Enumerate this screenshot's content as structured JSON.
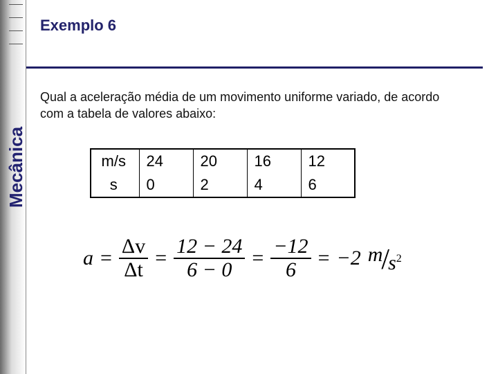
{
  "slide": {
    "title": "Exemplo 6",
    "sidebar_label": "Mecânica",
    "question": "Qual a aceleração média de um movimento uniforme variado, de acordo com a tabela de valores abaixo:",
    "title_color": "#23236b",
    "rule_color": "#1f1f66",
    "background": "#ffffff"
  },
  "table": {
    "type": "table",
    "border_color": "#000000",
    "cell_fontsize": 22,
    "columns": [
      "unit",
      "v1",
      "v2",
      "v3",
      "v4"
    ],
    "rows": [
      {
        "unit": "m/s",
        "v1": "24",
        "v2": "20",
        "v3": "16",
        "v4": "12"
      },
      {
        "unit": "s",
        "v1": "0",
        "v2": "2",
        "v3": "4",
        "v4": "6"
      }
    ]
  },
  "formula": {
    "lhs": "a",
    "frac1_num": "Δv",
    "frac1_den": "Δt",
    "frac2_num": "12 − 24",
    "frac2_den": "6 − 0",
    "frac3_num": "−12",
    "frac3_den": "6",
    "result_value": "−2",
    "unit_top": "m",
    "unit_bottom": "s",
    "unit_exp": "2",
    "font_family": "Times New Roman",
    "font_size": 30,
    "color": "#000000"
  }
}
